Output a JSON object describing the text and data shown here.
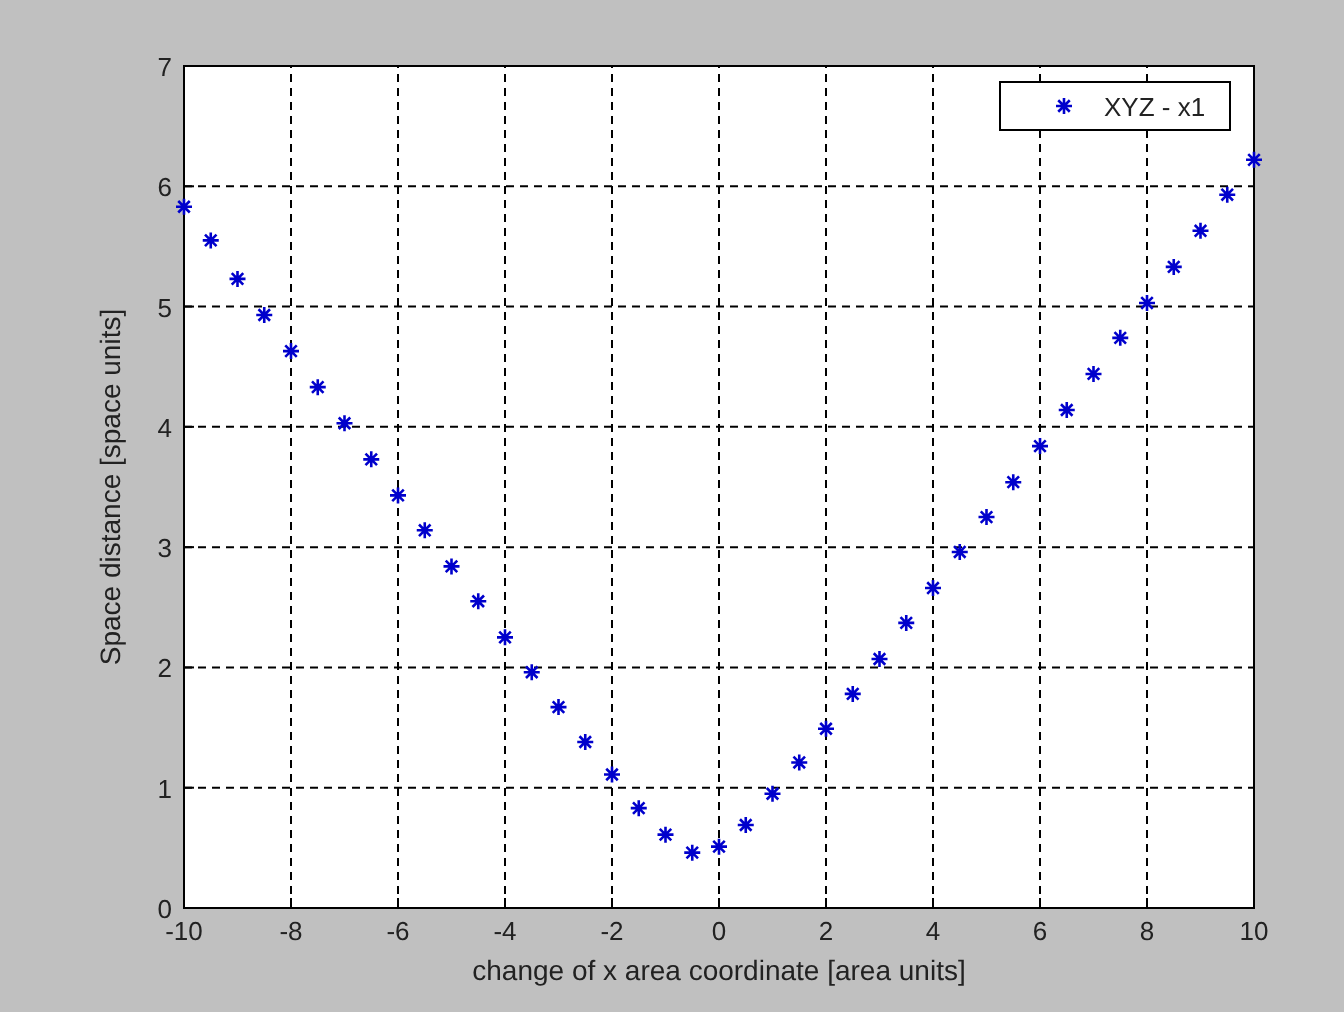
{
  "chart_data": {
    "type": "scatter",
    "xlabel": "change of x area coordinate [area units]",
    "ylabel": "Space distance [space units]",
    "xlim": [
      -10,
      10
    ],
    "xticks": [
      -10,
      -8,
      -6,
      -4,
      -2,
      0,
      2,
      4,
      6,
      8,
      10
    ],
    "ylim": [
      0,
      7
    ],
    "yticks": [
      0,
      1,
      2,
      3,
      4,
      5,
      6,
      7
    ],
    "grid": true,
    "legend": "top right",
    "marker": "cross",
    "series": [
      {
        "name": "XYZ - x1",
        "color": "#0000cc",
        "x": [
          -10,
          -9.5,
          -9,
          -8.5,
          -8,
          -7.5,
          -7,
          -6.5,
          -6,
          -5.5,
          -5,
          -4.5,
          -4,
          -3.5,
          -3,
          -2.5,
          -2,
          -1.5,
          -1,
          -0.5,
          0,
          0.5,
          1,
          1.5,
          2,
          2.5,
          3,
          3.5,
          4,
          4.5,
          5,
          5.5,
          6,
          6.5,
          7,
          7.5,
          8,
          8.5,
          9,
          9.5,
          10
        ],
        "values": [
          5.83,
          5.55,
          5.23,
          4.93,
          4.63,
          4.33,
          4.03,
          3.73,
          3.43,
          3.14,
          2.84,
          2.55,
          2.25,
          1.96,
          1.67,
          1.38,
          1.11,
          0.83,
          0.61,
          0.46,
          0.51,
          0.69,
          0.95,
          1.21,
          1.49,
          1.78,
          2.07,
          2.37,
          2.66,
          2.96,
          3.25,
          3.54,
          3.84,
          4.14,
          4.44,
          4.74,
          5.03,
          5.33,
          5.63,
          5.93,
          6.22
        ]
      }
    ]
  }
}
